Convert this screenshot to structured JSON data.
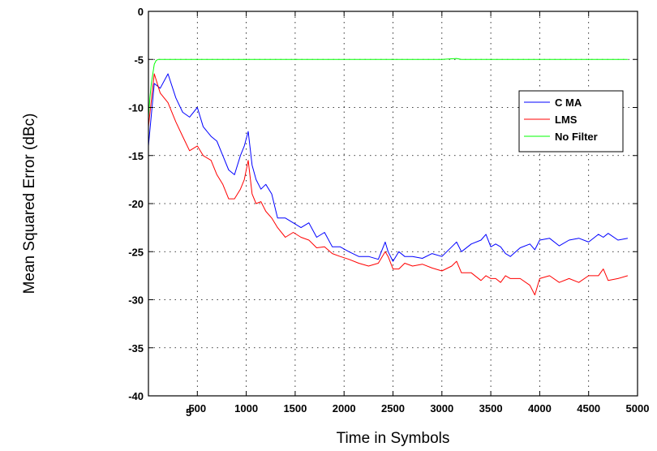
{
  "chart_data": {
    "type": "line",
    "title": "",
    "xlabel": "Time in Symbols",
    "ylabel": "Mean Squared Error (dBc)",
    "xlim": [
      0,
      5000
    ],
    "ylim": [
      -40,
      0
    ],
    "x_ticks": [
      500,
      1000,
      1500,
      2000,
      2500,
      3000,
      3500,
      4000,
      4500,
      5000
    ],
    "x_tick_labels": [
      "500",
      "1000",
      "1500",
      "2000",
      "2500",
      "3000",
      "3500",
      "4000",
      "4500",
      "5000"
    ],
    "x_corner_label": "5",
    "y_ticks": [
      0,
      -5,
      -10,
      -15,
      -20,
      -25,
      -30,
      -35,
      -40
    ],
    "y_tick_labels": [
      "0",
      "-5",
      "-10",
      "-15",
      "-20",
      "-25",
      "-30",
      "-35",
      "-40"
    ],
    "grid": true,
    "legend_position": "top-right",
    "series": [
      {
        "name": "C MA",
        "color": "#0000ff",
        "x": [
          0,
          60,
          120,
          200,
          280,
          350,
          420,
          500,
          560,
          640,
          700,
          760,
          820,
          880,
          940,
          980,
          1020,
          1060,
          1100,
          1150,
          1200,
          1260,
          1320,
          1400,
          1480,
          1560,
          1640,
          1720,
          1800,
          1880,
          1960,
          2050,
          2150,
          2250,
          2350,
          2420,
          2450,
          2500,
          2560,
          2620,
          2700,
          2800,
          2900,
          3000,
          3100,
          3150,
          3200,
          3300,
          3400,
          3450,
          3500,
          3550,
          3600,
          3650,
          3700,
          3800,
          3900,
          3950,
          4000,
          4100,
          4200,
          4300,
          4400,
          4500,
          4600,
          4650,
          4700,
          4800,
          4900
        ],
        "y": [
          -14,
          -7.5,
          -8,
          -6.5,
          -9,
          -10.5,
          -11,
          -10,
          -12,
          -13,
          -13.5,
          -15,
          -16.5,
          -17,
          -15,
          -14,
          -12.5,
          -16,
          -17.5,
          -18.5,
          -18,
          -19,
          -21.5,
          -21.5,
          -22,
          -22.5,
          -22,
          -23.5,
          -23,
          -24.5,
          -24.5,
          -25,
          -25.5,
          -25.5,
          -25.8,
          -24,
          -25,
          -26,
          -25,
          -25.5,
          -25.5,
          -25.7,
          -25.2,
          -25.5,
          -24.5,
          -24,
          -25,
          -24.2,
          -23.8,
          -23.2,
          -24.5,
          -24.2,
          -24.5,
          -25.2,
          -25.5,
          -24.6,
          -24.2,
          -24.8,
          -23.8,
          -23.6,
          -24.4,
          -23.8,
          -23.6,
          -24,
          -23.2,
          -23.5,
          -23.1,
          -23.8,
          -23.6
        ]
      },
      {
        "name": "LMS",
        "color": "#ff0000",
        "x": [
          0,
          60,
          120,
          200,
          280,
          350,
          420,
          500,
          560,
          640,
          700,
          760,
          820,
          880,
          940,
          980,
          1020,
          1060,
          1100,
          1150,
          1200,
          1260,
          1320,
          1400,
          1480,
          1560,
          1640,
          1720,
          1800,
          1880,
          1960,
          2050,
          2150,
          2250,
          2350,
          2420,
          2450,
          2500,
          2560,
          2620,
          2700,
          2800,
          2900,
          3000,
          3100,
          3150,
          3200,
          3300,
          3400,
          3450,
          3500,
          3550,
          3600,
          3650,
          3700,
          3800,
          3900,
          3950,
          4000,
          4100,
          4200,
          4300,
          4400,
          4500,
          4600,
          4650,
          4700,
          4800,
          4900
        ],
        "y": [
          -12,
          -6.5,
          -8.5,
          -9.5,
          -11.5,
          -13,
          -14.5,
          -14,
          -15,
          -15.5,
          -17,
          -18,
          -19.5,
          -19.5,
          -18.5,
          -17.5,
          -15.5,
          -19,
          -20,
          -19.8,
          -20.8,
          -21.5,
          -22.5,
          -23.5,
          -23,
          -23.5,
          -23.8,
          -24.6,
          -24.5,
          -25.2,
          -25.5,
          -25.8,
          -26.2,
          -26.5,
          -26.2,
          -25,
          -25.5,
          -26.8,
          -26.8,
          -26.2,
          -26.5,
          -26.3,
          -26.7,
          -27,
          -26.5,
          -26,
          -27.2,
          -27.2,
          -28,
          -27.5,
          -27.8,
          -27.8,
          -28.2,
          -27.5,
          -27.8,
          -27.8,
          -28.5,
          -29.5,
          -27.8,
          -27.5,
          -28.2,
          -27.8,
          -28.2,
          -27.5,
          -27.5,
          -26.8,
          -28,
          -27.8,
          -27.5
        ]
      },
      {
        "name": "No Filter",
        "color": "#00ff00",
        "x": [
          0,
          15,
          30,
          60,
          80,
          100,
          1000,
          2000,
          3000,
          3150,
          3200,
          4000,
          4900
        ],
        "y": [
          -11,
          -9,
          -7.5,
          -5.5,
          -5.1,
          -5,
          -5,
          -5,
          -5,
          -4.9,
          -5,
          -5,
          -5
        ]
      }
    ]
  }
}
